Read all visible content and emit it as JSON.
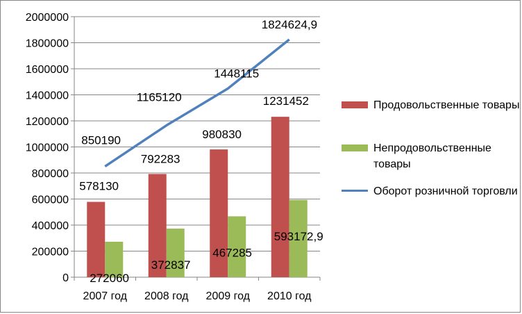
{
  "chart_data": {
    "type": "bar",
    "categories": [
      "2007 год",
      "2008 год",
      "2009 год",
      "2010 год"
    ],
    "ylim": [
      0,
      2000000
    ],
    "ytick_step": 200000,
    "ytick_labels": [
      "0",
      "200000",
      "400000",
      "600000",
      "800000",
      "1000000",
      "1200000",
      "1400000",
      "1600000",
      "1800000",
      "2000000"
    ],
    "grid": true,
    "legend_position": "right",
    "series": [
      {
        "name": "Продовольственные товары",
        "kind": "bar",
        "color": "#C0504D",
        "values": [
          578130,
          792283,
          980830,
          1231452
        ],
        "labels": [
          "578130",
          "792283",
          "980830",
          "1231452"
        ]
      },
      {
        "name": "Непродовольственные товары",
        "kind": "bar",
        "color": "#9BBB59",
        "values": [
          272060,
          372837,
          467285,
          593172.9
        ],
        "labels": [
          "272060",
          "372837",
          "467285",
          "593172,9"
        ]
      },
      {
        "name": "Оборот розничной торговли",
        "kind": "line",
        "color": "#4F81BD",
        "values": [
          850190,
          1165120,
          1448115,
          1824624.9
        ],
        "labels": [
          "850190",
          "1165120",
          "1448115",
          "1824624,9"
        ]
      }
    ]
  }
}
